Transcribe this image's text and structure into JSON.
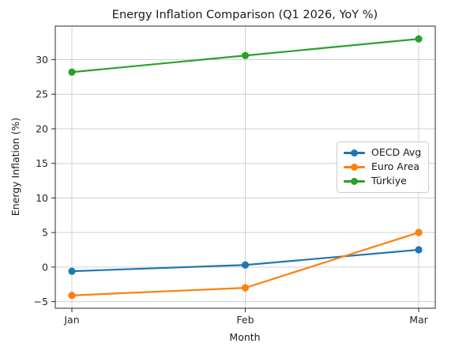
{
  "chart_data": {
    "type": "line",
    "title": "Energy Inflation Comparison (Q1 2026, YoY %)",
    "xlabel": "Month",
    "ylabel": "Energy Inflation (%)",
    "categories": [
      "Jan",
      "Feb",
      "Mar"
    ],
    "series": [
      {
        "name": "OECD Avg",
        "color": "#1f77b4",
        "values": [
          -0.6,
          0.3,
          2.5
        ]
      },
      {
        "name": "Euro Area",
        "color": "#ff7f0e",
        "values": [
          -4.1,
          -3.0,
          5.0
        ]
      },
      {
        "name": "Türkiye",
        "color": "#2ca02c",
        "values": [
          28.2,
          30.6,
          33.0
        ]
      }
    ],
    "yticks": [
      -5,
      0,
      5,
      10,
      15,
      20,
      25,
      30
    ],
    "ylim": [
      -5.96,
      34.86
    ],
    "grid": true,
    "legend_position": "center-right",
    "grid_color": "#d0d0d0",
    "frame_color": "#2b2b2b"
  }
}
